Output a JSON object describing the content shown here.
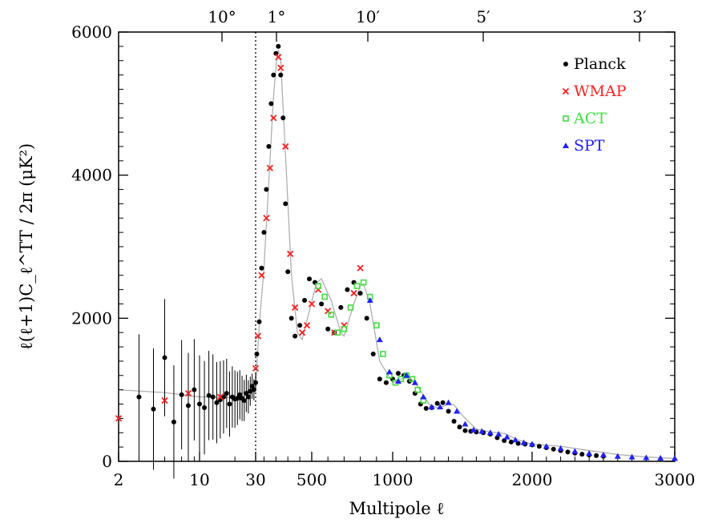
{
  "chart_data": {
    "type": "scatter",
    "xlabel": "Multipole ℓ",
    "ylabel": "ℓ(ℓ+1)C_ℓ^TT / 2π (μK²)",
    "ylim": [
      0,
      6000
    ],
    "yticks": [
      0,
      2000,
      4000,
      6000
    ],
    "x_scale": "hybrid: log for ℓ ≤ 30, linear for ℓ > 30 (rendered as piecewise-linear reading interpolation)",
    "x_ticks": [
      2,
      10,
      30,
      500,
      1000,
      2000,
      3000
    ],
    "top_axis_ticks": [
      "10°",
      "1°",
      "10′",
      "5′",
      "3′"
    ],
    "vertical_marker": {
      "x": 30,
      "style": "dotted"
    },
    "legend": {
      "position": "top-right",
      "entries": [
        "Planck",
        "WMAP",
        "ACT",
        "SPT"
      ]
    },
    "model_curve": [
      [
        2,
        1000
      ],
      [
        5,
        960
      ],
      [
        10,
        900
      ],
      [
        20,
        890
      ],
      [
        30,
        1050
      ],
      [
        60,
        1900
      ],
      [
        100,
        2700
      ],
      [
        140,
        3900
      ],
      [
        180,
        5100
      ],
      [
        205,
        5600
      ],
      [
        220,
        5750
      ],
      [
        240,
        5600
      ],
      [
        280,
        4300
      ],
      [
        330,
        2600
      ],
      [
        380,
        1800
      ],
      [
        420,
        1700
      ],
      [
        480,
        2100
      ],
      [
        530,
        2500
      ],
      [
        560,
        2550
      ],
      [
        620,
        2250
      ],
      [
        680,
        1800
      ],
      [
        700,
        1750
      ],
      [
        760,
        2200
      ],
      [
        800,
        2450
      ],
      [
        820,
        2480
      ],
      [
        860,
        2200
      ],
      [
        920,
        1400
      ],
      [
        1000,
        1100
      ],
      [
        1060,
        1150
      ],
      [
        1120,
        1180
      ],
      [
        1180,
        1050
      ],
      [
        1260,
        800
      ],
      [
        1330,
        740
      ],
      [
        1400,
        800
      ],
      [
        1440,
        790
      ],
      [
        1500,
        640
      ],
      [
        1600,
        450
      ],
      [
        1700,
        410
      ],
      [
        1800,
        390
      ],
      [
        1900,
        300
      ],
      [
        2000,
        240
      ],
      [
        2200,
        210
      ],
      [
        2400,
        150
      ],
      [
        2600,
        95
      ],
      [
        2800,
        60
      ],
      [
        3000,
        40
      ]
    ],
    "series": [
      {
        "name": "Planck",
        "color": "#000000",
        "marker": "circle",
        "x": [
          3,
          4,
          5,
          6,
          7,
          8,
          9,
          10,
          11,
          12,
          13,
          14,
          15,
          16,
          17,
          18,
          19,
          20,
          21,
          22,
          23,
          24,
          25,
          26,
          27,
          28,
          29,
          30,
          40,
          60,
          80,
          100,
          120,
          140,
          160,
          180,
          200,
          220,
          240,
          260,
          280,
          300,
          330,
          360,
          400,
          440,
          480,
          520,
          560,
          600,
          640,
          680,
          720,
          760,
          800,
          840,
          880,
          920,
          960,
          1000,
          1040,
          1080,
          1120,
          1160,
          1200,
          1240,
          1280,
          1320,
          1360,
          1400,
          1440,
          1480,
          1520,
          1560,
          1600,
          1650,
          1700,
          1750,
          1800,
          1850,
          1900,
          1950,
          2000,
          2050,
          2100,
          2150,
          2200,
          2250,
          2300,
          2350,
          2400,
          2450,
          2500
        ],
        "y": [
          900,
          730,
          1450,
          550,
          930,
          780,
          1000,
          800,
          750,
          920,
          900,
          820,
          860,
          900,
          950,
          800,
          900,
          870,
          880,
          930,
          880,
          850,
          950,
          900,
          980,
          1050,
          1000,
          1100,
          1500,
          1950,
          2700,
          3200,
          3800,
          4400,
          5000,
          5400,
          5700,
          5800,
          5400,
          4800,
          3600,
          2650,
          2000,
          1750,
          1900,
          2250,
          2550,
          2500,
          2200,
          1850,
          1800,
          2150,
          2400,
          2500,
          2350,
          2000,
          1500,
          1150,
          1100,
          1150,
          1230,
          1200,
          1120,
          950,
          800,
          740,
          750,
          810,
          820,
          700,
          560,
          480,
          430,
          420,
          410,
          400,
          380,
          330,
          290,
          270,
          250,
          240,
          230,
          210,
          190,
          170,
          150,
          130,
          115,
          100,
          90,
          80,
          70
        ]
      },
      {
        "name": "WMAP",
        "color": "#ff2020",
        "marker": "cross",
        "x": [
          2,
          5,
          8,
          15,
          30,
          50,
          80,
          120,
          150,
          180,
          220,
          240,
          280,
          320,
          360,
          420,
          460,
          500,
          540,
          600,
          640,
          700,
          760,
          800
        ],
        "y": [
          600,
          850,
          950,
          900,
          1300,
          1750,
          2600,
          3400,
          4100,
          4800,
          5650,
          5500,
          4400,
          2900,
          2150,
          1800,
          1900,
          2200,
          2400,
          2100,
          1800,
          1900,
          2350,
          2700
        ]
      },
      {
        "name": "ACT",
        "color": "#40e040",
        "marker": "square",
        "x": [
          540,
          580,
          620,
          660,
          700,
          740,
          780,
          820,
          860,
          900,
          940,
          980,
          1020,
          1060,
          1100,
          1140,
          1180,
          1220
        ],
        "y": [
          2450,
          2300,
          2050,
          1800,
          1850,
          2150,
          2450,
          2500,
          2300,
          1900,
          1500,
          1200,
          1100,
          1150,
          1200,
          1150,
          1000,
          850
        ]
      },
      {
        "name": "SPT",
        "color": "#2020ff",
        "marker": "triangle",
        "x": [
          860,
          920,
          980,
          1040,
          1100,
          1160,
          1220,
          1280,
          1340,
          1400,
          1460,
          1520,
          1580,
          1640,
          1700,
          1760,
          1820,
          1880,
          1940,
          2000,
          2100,
          2200,
          2300,
          2400,
          2500,
          2600,
          2700,
          2800,
          2900,
          3000
        ],
        "y": [
          2250,
          1700,
          1250,
          1120,
          1200,
          1100,
          900,
          760,
          760,
          820,
          700,
          520,
          440,
          420,
          400,
          380,
          340,
          300,
          260,
          240,
          210,
          180,
          140,
          110,
          90,
          70,
          60,
          50,
          45,
          40
        ]
      }
    ]
  }
}
